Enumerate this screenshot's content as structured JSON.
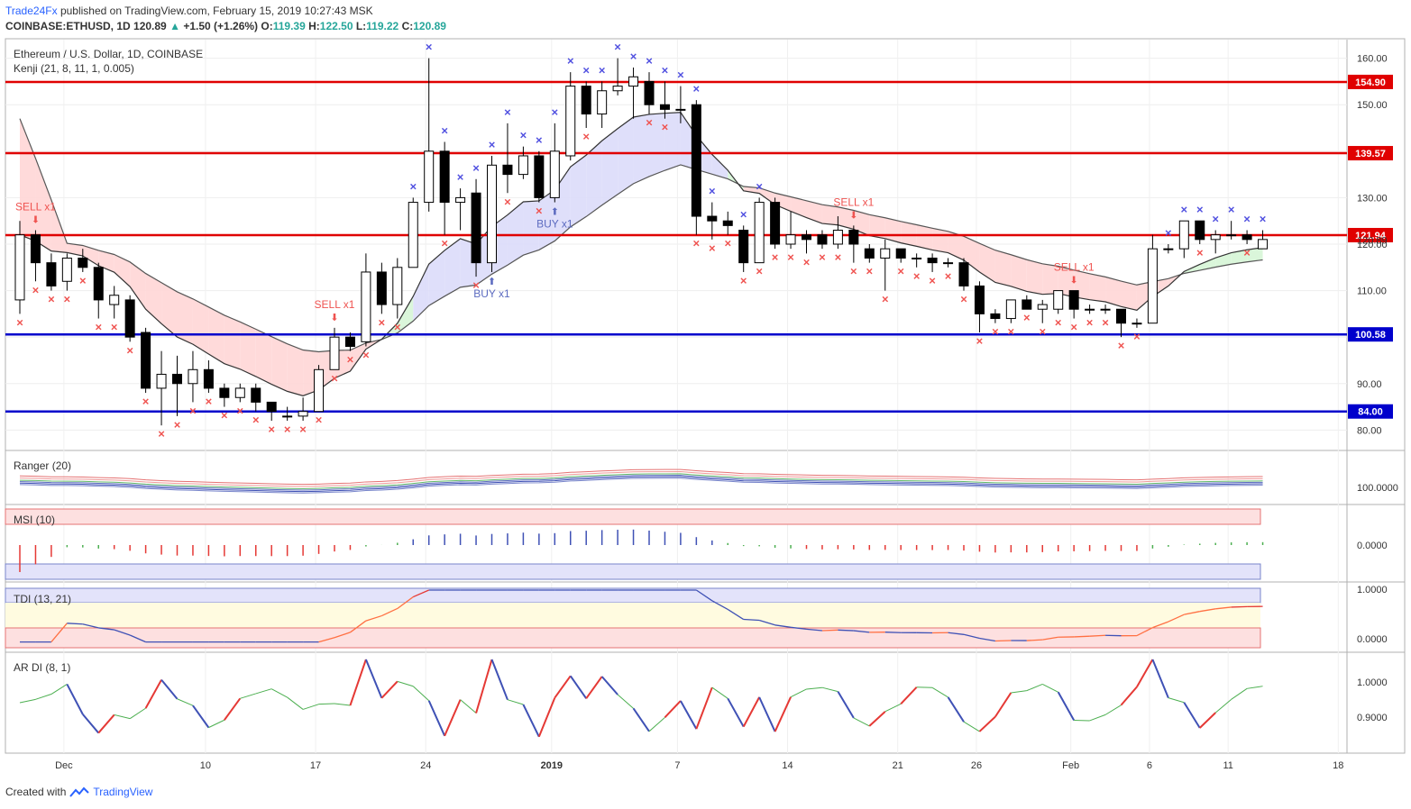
{
  "header": {
    "publisher": "Trade24Fx",
    "published_text": "published on TradingView.com, February 15, 2019 10:27:43 MSK",
    "symbol": "COINBASE:ETHUSD, 1D",
    "last": "120.89",
    "change": "+1.50 (+1.26%)",
    "o_label": "O:",
    "o": "119.39",
    "h_label": "H:",
    "h": "122.50",
    "l_label": "L:",
    "l": "119.22",
    "c_label": "C:",
    "c": "120.89"
  },
  "chart_data": [
    {
      "type": "candlestick",
      "title": "Ethereum / U.S. Dollar, 1D, COINBASE",
      "indicator_label": "Kenji (21, 8, 11, 1, 0.005)",
      "ylim": [
        76,
        164
      ],
      "y_ticks": [
        "160.00",
        "150.00",
        "140.00",
        "130.00",
        "120.00",
        "110.00",
        "100.00",
        "90.00",
        "80.00"
      ],
      "x_ticks": [
        "Dec",
        "10",
        "17",
        "24",
        "2019",
        "7",
        "14",
        "21",
        "26",
        "Feb",
        "6",
        "11",
        "18"
      ],
      "last_price_label": "120.89",
      "levels": [
        {
          "value": 154.9,
          "label": "154.90",
          "color": "#e00000"
        },
        {
          "value": 139.57,
          "label": "139.57",
          "color": "#e00000"
        },
        {
          "value": 121.94,
          "label": "121.94",
          "color": "#e00000"
        },
        {
          "value": 100.58,
          "label": "100.58",
          "color": "#0000cc"
        },
        {
          "value": 84.0,
          "label": "84.00",
          "color": "#0000cc"
        }
      ],
      "candles": [
        {
          "o": 108,
          "h": 125,
          "l": 105,
          "c": 122
        },
        {
          "o": 122,
          "h": 123,
          "l": 112,
          "c": 116
        },
        {
          "o": 116,
          "h": 118,
          "l": 110,
          "c": 111
        },
        {
          "o": 112,
          "h": 118,
          "l": 110,
          "c": 117
        },
        {
          "o": 117,
          "h": 119,
          "l": 114,
          "c": 115
        },
        {
          "o": 115,
          "h": 116,
          "l": 104,
          "c": 108
        },
        {
          "o": 107,
          "h": 111,
          "l": 104,
          "c": 109
        },
        {
          "o": 108,
          "h": 109,
          "l": 99,
          "c": 100
        },
        {
          "o": 101,
          "h": 102,
          "l": 88,
          "c": 89
        },
        {
          "o": 89,
          "h": 97,
          "l": 81,
          "c": 92
        },
        {
          "o": 92,
          "h": 96,
          "l": 83,
          "c": 90
        },
        {
          "o": 90,
          "h": 97,
          "l": 86,
          "c": 93
        },
        {
          "o": 93,
          "h": 95,
          "l": 88,
          "c": 89
        },
        {
          "o": 89,
          "h": 90,
          "l": 85,
          "c": 87
        },
        {
          "o": 87,
          "h": 90,
          "l": 86,
          "c": 89
        },
        {
          "o": 89,
          "h": 90,
          "l": 84,
          "c": 86
        },
        {
          "o": 86,
          "h": 86,
          "l": 82,
          "c": 84
        },
        {
          "o": 83,
          "h": 85,
          "l": 82,
          "c": 83
        },
        {
          "o": 83,
          "h": 87,
          "l": 82,
          "c": 84
        },
        {
          "o": 84,
          "h": 94,
          "l": 84,
          "c": 93
        },
        {
          "o": 93,
          "h": 102,
          "l": 93,
          "c": 100
        },
        {
          "o": 100,
          "h": 101,
          "l": 97,
          "c": 98
        },
        {
          "o": 99,
          "h": 118,
          "l": 98,
          "c": 114
        },
        {
          "o": 114,
          "h": 116,
          "l": 105,
          "c": 107
        },
        {
          "o": 107,
          "h": 117,
          "l": 104,
          "c": 115
        },
        {
          "o": 115,
          "h": 130,
          "l": 115,
          "c": 129
        },
        {
          "o": 129,
          "h": 160,
          "l": 127,
          "c": 140
        },
        {
          "o": 140,
          "h": 142,
          "l": 122,
          "c": 129
        },
        {
          "o": 129,
          "h": 132,
          "l": 123,
          "c": 130
        },
        {
          "o": 131,
          "h": 134,
          "l": 113,
          "c": 116
        },
        {
          "o": 116,
          "h": 139,
          "l": 114,
          "c": 137
        },
        {
          "o": 137,
          "h": 146,
          "l": 131,
          "c": 135
        },
        {
          "o": 135,
          "h": 141,
          "l": 134,
          "c": 139
        },
        {
          "o": 139,
          "h": 140,
          "l": 129,
          "c": 130
        },
        {
          "o": 130,
          "h": 146,
          "l": 129,
          "c": 140
        },
        {
          "o": 139,
          "h": 157,
          "l": 138,
          "c": 154
        },
        {
          "o": 154,
          "h": 155,
          "l": 145,
          "c": 148
        },
        {
          "o": 148,
          "h": 155,
          "l": 145,
          "c": 153
        },
        {
          "o": 153,
          "h": 160,
          "l": 152,
          "c": 154
        },
        {
          "o": 154,
          "h": 158,
          "l": 147,
          "c": 156
        },
        {
          "o": 155,
          "h": 157,
          "l": 148,
          "c": 150
        },
        {
          "o": 150,
          "h": 155,
          "l": 147,
          "c": 149
        },
        {
          "o": 149,
          "h": 154,
          "l": 146,
          "c": 149
        },
        {
          "o": 150,
          "h": 151,
          "l": 122,
          "c": 126
        },
        {
          "o": 126,
          "h": 129,
          "l": 121,
          "c": 125
        },
        {
          "o": 125,
          "h": 127,
          "l": 122,
          "c": 124
        },
        {
          "o": 123,
          "h": 124,
          "l": 114,
          "c": 116
        },
        {
          "o": 116,
          "h": 130,
          "l": 116,
          "c": 129
        },
        {
          "o": 129,
          "h": 130,
          "l": 119,
          "c": 120
        },
        {
          "o": 120,
          "h": 127,
          "l": 119,
          "c": 122
        },
        {
          "o": 122,
          "h": 123,
          "l": 118,
          "c": 121
        },
        {
          "o": 122,
          "h": 123,
          "l": 119,
          "c": 120
        },
        {
          "o": 120,
          "h": 126,
          "l": 119,
          "c": 123
        },
        {
          "o": 123,
          "h": 124,
          "l": 116,
          "c": 120
        },
        {
          "o": 119,
          "h": 120,
          "l": 116,
          "c": 117
        },
        {
          "o": 117,
          "h": 121,
          "l": 110,
          "c": 119
        },
        {
          "o": 119,
          "h": 119,
          "l": 116,
          "c": 117
        },
        {
          "o": 117,
          "h": 118,
          "l": 115,
          "c": 117
        },
        {
          "o": 117,
          "h": 118,
          "l": 114,
          "c": 116
        },
        {
          "o": 116,
          "h": 117,
          "l": 115,
          "c": 116
        },
        {
          "o": 116,
          "h": 117,
          "l": 110,
          "c": 111
        },
        {
          "o": 111,
          "h": 112,
          "l": 101,
          "c": 105
        },
        {
          "o": 105,
          "h": 106,
          "l": 103,
          "c": 104
        },
        {
          "o": 104,
          "h": 108,
          "l": 103,
          "c": 108
        },
        {
          "o": 108,
          "h": 109,
          "l": 106,
          "c": 106
        },
        {
          "o": 106,
          "h": 108,
          "l": 103,
          "c": 107
        },
        {
          "o": 106,
          "h": 110,
          "l": 105,
          "c": 110
        },
        {
          "o": 110,
          "h": 110,
          "l": 104,
          "c": 106
        },
        {
          "o": 106,
          "h": 107,
          "l": 105,
          "c": 106
        },
        {
          "o": 106,
          "h": 107,
          "l": 105,
          "c": 106
        },
        {
          "o": 106,
          "h": 106,
          "l": 100,
          "c": 103
        },
        {
          "o": 103,
          "h": 104,
          "l": 102,
          "c": 103
        },
        {
          "o": 103,
          "h": 122,
          "l": 103,
          "c": 119
        },
        {
          "o": 119,
          "h": 120,
          "l": 118,
          "c": 119
        },
        {
          "o": 119,
          "h": 125,
          "l": 117,
          "c": 125
        },
        {
          "o": 125,
          "h": 125,
          "l": 120,
          "c": 121
        },
        {
          "o": 121,
          "h": 123,
          "l": 118,
          "c": 122
        },
        {
          "o": 122,
          "h": 125,
          "l": 121,
          "c": 122
        },
        {
          "o": 122,
          "h": 123,
          "l": 120,
          "c": 121
        },
        {
          "o": 119,
          "h": 123,
          "l": 119,
          "c": 121
        }
      ],
      "signals": [
        {
          "text": "SELL x1",
          "bar": 1,
          "color": "#ef5350"
        },
        {
          "text": "SELL x1",
          "bar": 20,
          "color": "#ef5350"
        },
        {
          "text": "BUY x1",
          "bar": 30,
          "color": "#5c6bc0"
        },
        {
          "text": "BUY x1",
          "bar": 34,
          "color": "#5c6bc0"
        },
        {
          "text": "SELL x1",
          "bar": 53,
          "color": "#ef5350"
        },
        {
          "text": "SELL x1",
          "bar": 67,
          "color": "#ef5350"
        }
      ],
      "colors": {
        "up_fill": "#ffffff",
        "down_fill": "#000000",
        "cloud_bear": "#ffd6d6",
        "cloud_bull": "#dcdcfa",
        "cloud_green": "#d6f5d6",
        "marker_top": "#5050e0",
        "marker_bottom": "#ef5350"
      }
    },
    {
      "type": "line",
      "title": "Ranger (20)",
      "axis_label": "100.0000"
    },
    {
      "type": "bar",
      "title": "MSI (10)",
      "axis_label": "0.0000"
    },
    {
      "type": "line",
      "title": "TDI (13, 21)",
      "axis_labels": [
        "1.0000",
        "0.0000"
      ]
    },
    {
      "type": "line",
      "title": "AR DI (8, 1)",
      "axis_labels": [
        "1.0000",
        "0.9000"
      ]
    }
  ],
  "footer": {
    "created_with": "Created with",
    "brand": "TradingView"
  }
}
